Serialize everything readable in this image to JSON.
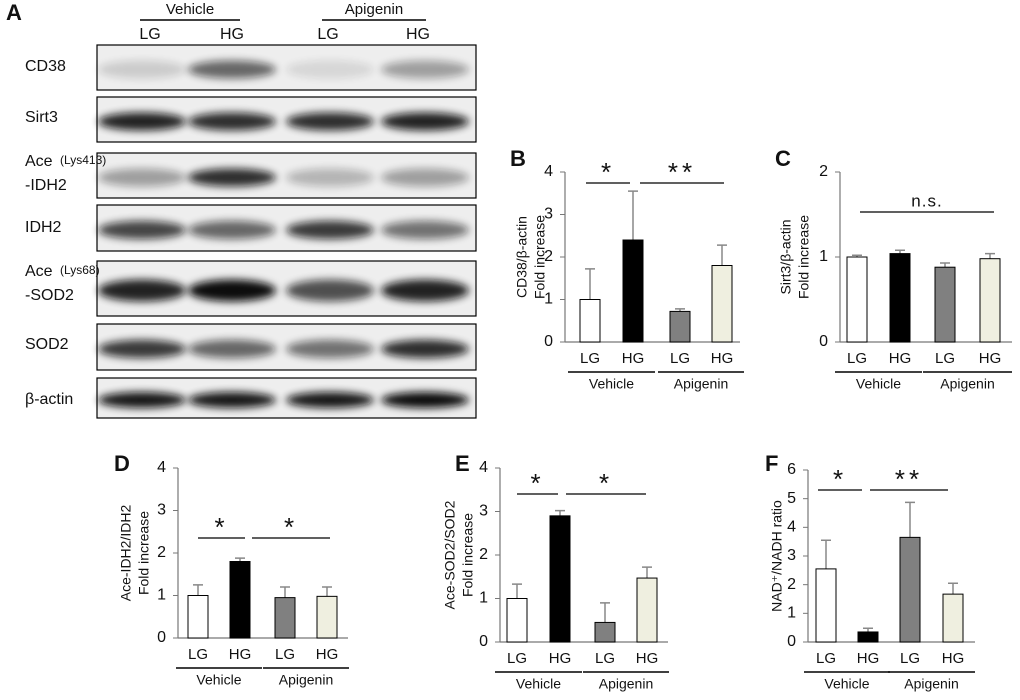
{
  "blot": {
    "label": "A",
    "groups": [
      "Vehicle",
      "Apigenin"
    ],
    "lanes": [
      "LG",
      "HG",
      "LG",
      "HG"
    ],
    "rows": [
      {
        "label": "CD38"
      },
      {
        "label": "Sirt3"
      },
      {
        "label": "Ace",
        "note": "(Lys413)",
        "label2": "-IDH2"
      },
      {
        "label": "IDH2"
      },
      {
        "label": "Ace",
        "note": "(Lys68)",
        "label2": "-SOD2"
      },
      {
        "label": "SOD2"
      },
      {
        "label": "β-actin"
      }
    ]
  },
  "chart_data": [
    {
      "type": "bar",
      "label": "B",
      "ylabel": [
        "CD38/β-actin",
        "Fold increase"
      ],
      "categories": [
        "LG",
        "HG",
        "LG",
        "HG"
      ],
      "groups": [
        "Vehicle",
        "Apigenin"
      ],
      "values": [
        1.0,
        2.4,
        0.72,
        1.8
      ],
      "errors": [
        0.72,
        1.15,
        0.06,
        0.48
      ],
      "colors": [
        "#ffffff",
        "#000000",
        "#808080",
        "#efefe0"
      ],
      "ylim": [
        0,
        4
      ],
      "yticks": [
        0,
        1,
        2,
        3,
        4
      ],
      "annotations": [
        "*",
        "**"
      ]
    },
    {
      "type": "bar",
      "label": "C",
      "ylabel": [
        "Sirt3/β-actin",
        "Fold increase"
      ],
      "categories": [
        "LG",
        "HG",
        "LG",
        "HG"
      ],
      "groups": [
        "Vehicle",
        "Apigenin"
      ],
      "values": [
        1.0,
        1.04,
        0.88,
        0.98
      ],
      "errors": [
        0.02,
        0.04,
        0.05,
        0.06
      ],
      "colors": [
        "#ffffff",
        "#000000",
        "#808080",
        "#efefe0"
      ],
      "ylim": [
        0,
        2
      ],
      "yticks": [
        0,
        1,
        2
      ],
      "annotations": [
        "n.s."
      ]
    },
    {
      "type": "bar",
      "label": "D",
      "ylabel": [
        "Ace-IDH2/IDH2",
        "Fold increase"
      ],
      "categories": [
        "LG",
        "HG",
        "LG",
        "HG"
      ],
      "groups": [
        "Vehicle",
        "Apigenin"
      ],
      "values": [
        1.0,
        1.8,
        0.95,
        0.98
      ],
      "errors": [
        0.25,
        0.08,
        0.25,
        0.22
      ],
      "colors": [
        "#ffffff",
        "#000000",
        "#808080",
        "#efefe0"
      ],
      "ylim": [
        0,
        4
      ],
      "yticks": [
        0,
        1,
        2,
        3,
        4
      ],
      "annotations": [
        "*",
        "*"
      ]
    },
    {
      "type": "bar",
      "label": "E",
      "ylabel": [
        "Ace-SOD2/SOD2",
        "Fold increase"
      ],
      "categories": [
        "LG",
        "HG",
        "LG",
        "HG"
      ],
      "groups": [
        "Vehicle",
        "Apigenin"
      ],
      "values": [
        1.0,
        2.9,
        0.45,
        1.47
      ],
      "errors": [
        0.33,
        0.12,
        0.45,
        0.25
      ],
      "colors": [
        "#ffffff",
        "#000000",
        "#808080",
        "#efefe0"
      ],
      "ylim": [
        0,
        4
      ],
      "yticks": [
        0,
        1,
        2,
        3,
        4
      ],
      "annotations": [
        "*",
        "*"
      ]
    },
    {
      "type": "bar",
      "label": "F",
      "ylabel": [
        "NAD⁺/NADH ratio"
      ],
      "categories": [
        "LG",
        "HG",
        "LG",
        "HG"
      ],
      "groups": [
        "Vehicle",
        "Apigenin"
      ],
      "values": [
        2.55,
        0.35,
        3.65,
        1.67
      ],
      "errors": [
        1.0,
        0.13,
        1.22,
        0.38
      ],
      "colors": [
        "#ffffff",
        "#000000",
        "#808080",
        "#efefe0"
      ],
      "ylim": [
        0,
        6
      ],
      "yticks": [
        0,
        1,
        2,
        3,
        4,
        5,
        6
      ],
      "annotations": [
        "*",
        "**"
      ]
    }
  ]
}
